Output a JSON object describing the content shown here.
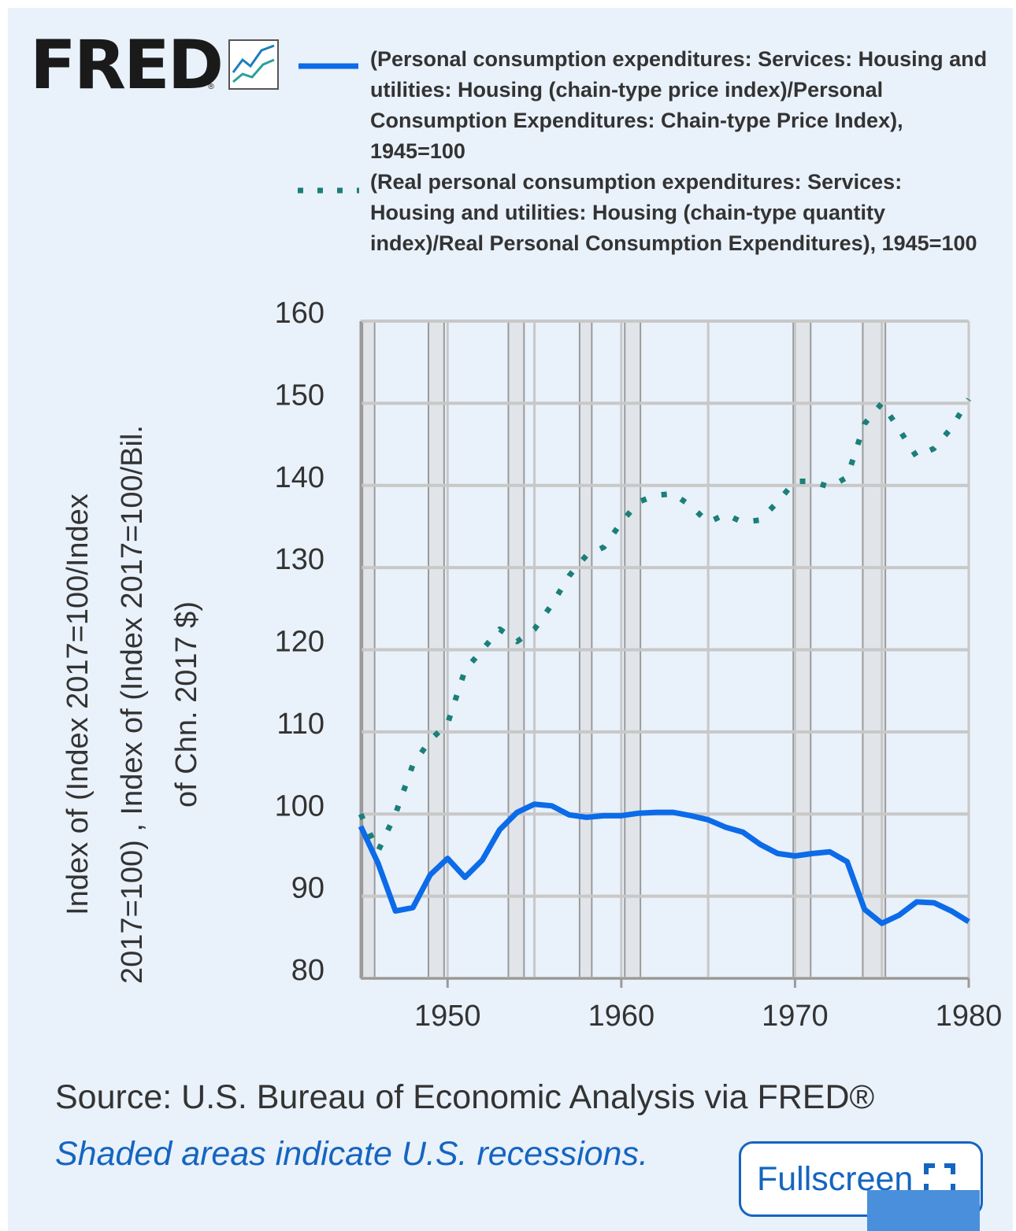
{
  "logo": {
    "text": "FRED",
    "reg": "®",
    "icon": "line-chart-icon"
  },
  "legend": [
    {
      "label": "(Personal consumption expenditures: Services: Housing and utilities: Housing (chain-type price index)/Personal Consumption Expenditures: Chain-type Price Index), 1945=100",
      "color": "#0b6be8",
      "style": "solid"
    },
    {
      "label": "(Real personal consumption expenditures: Services: Housing and utilities: Housing (chain-type quantity index)/Real Personal Consumption Expenditures), 1945=100",
      "color": "#1b7f79",
      "style": "dotted"
    }
  ],
  "y_axis_label": "Index of (Index 2017=100/Index 2017=100) , Index of (Index 2017=100/Bil. of Chn. 2017 $)",
  "source": "Source: U.S. Bureau of Economic Analysis via FRED®",
  "recession_note": "Shaded areas indicate U.S. recessions.",
  "fullscreen_label": "Fullscreen",
  "chart_data": {
    "type": "line",
    "title": "",
    "xlabel": "",
    "ylabel": "Index of (Index 2017=100/Index 2017=100) , Index of (Index 2017=100/Bil. of Chn. 2017 $)",
    "xlim": [
      1945,
      1980
    ],
    "ylim": [
      80,
      160
    ],
    "x_ticks": [
      1950,
      1960,
      1970,
      1980
    ],
    "y_ticks": [
      80,
      90,
      100,
      110,
      120,
      130,
      140,
      150,
      160
    ],
    "recessions": [
      [
        1945.1,
        1945.8
      ],
      [
        1948.9,
        1949.8
      ],
      [
        1953.5,
        1954.4
      ],
      [
        1957.6,
        1958.3
      ],
      [
        1960.2,
        1961.1
      ],
      [
        1969.9,
        1970.9
      ],
      [
        1973.9,
        1975.2
      ]
    ],
    "series": [
      {
        "name": "(Personal consumption expenditures: Services: Housing and utilities: Housing (chain-type price index)/Personal Consumption Expenditures: Chain-type Price Index), 1945=100",
        "style": "solid",
        "x": [
          1945,
          1946,
          1947,
          1948,
          1949,
          1950,
          1951,
          1952,
          1953,
          1954,
          1955,
          1956,
          1957,
          1958,
          1959,
          1960,
          1961,
          1962,
          1963,
          1964,
          1965,
          1966,
          1967,
          1968,
          1969,
          1970,
          1971,
          1972,
          1973,
          1974,
          1975,
          1976,
          1977,
          1978,
          1979,
          1980
        ],
        "values": [
          98.5,
          94.0,
          88.2,
          88.6,
          92.6,
          94.6,
          92.3,
          94.4,
          98.1,
          100.2,
          101.2,
          101.0,
          99.9,
          99.6,
          99.8,
          99.8,
          100.1,
          100.2,
          100.2,
          99.8,
          99.3,
          98.4,
          97.8,
          96.3,
          95.2,
          94.9,
          95.2,
          95.4,
          94.2,
          88.4,
          86.7,
          87.7,
          89.3,
          89.2,
          88.2,
          86.9
        ]
      },
      {
        "name": "(Real personal consumption expenditures: Services: Housing and utilities: Housing (chain-type quantity index)/Real Personal Consumption Expenditures), 1945=100",
        "style": "dotted",
        "x": [
          1945,
          1946,
          1947,
          1948,
          1949,
          1950,
          1951,
          1952,
          1953,
          1954,
          1955,
          1956,
          1957,
          1958,
          1959,
          1960,
          1961,
          1962,
          1963,
          1964,
          1965,
          1966,
          1967,
          1968,
          1969,
          1970,
          1971,
          1972,
          1973,
          1974,
          1975,
          1976,
          1977,
          1978,
          1979,
          1980
        ],
        "values": [
          100.0,
          95.5,
          100.0,
          106.0,
          109.0,
          111.0,
          117.5,
          120.0,
          122.5,
          121.0,
          122.5,
          125.5,
          129.0,
          131.5,
          132.5,
          135.5,
          138.0,
          138.8,
          139.0,
          137.5,
          135.5,
          136.5,
          135.5,
          135.8,
          138.0,
          140.5,
          140.5,
          139.8,
          141.0,
          147.5,
          150.0,
          146.8,
          143.5,
          144.5,
          147.0,
          150.5
        ]
      }
    ]
  }
}
